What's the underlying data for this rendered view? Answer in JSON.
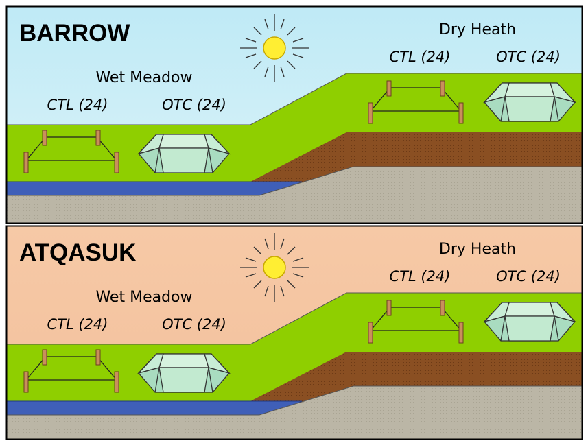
{
  "panels": [
    {
      "site": "BARROW",
      "wet": {
        "label": "Wet Meadow",
        "ctl": "CTL (24)",
        "otc": "OTC (24)"
      },
      "dry": {
        "label": "Dry Heath",
        "ctl": "CTL (24)",
        "otc": "OTC (24)"
      }
    },
    {
      "site": "ATQASUK",
      "wet": {
        "label": "Wet Meadow",
        "ctl": "CTL (24)",
        "otc": "OTC (24)"
      },
      "dry": {
        "label": "Dry Heath",
        "ctl": "CTL (24)",
        "otc": "OTC (24)"
      }
    }
  ]
}
